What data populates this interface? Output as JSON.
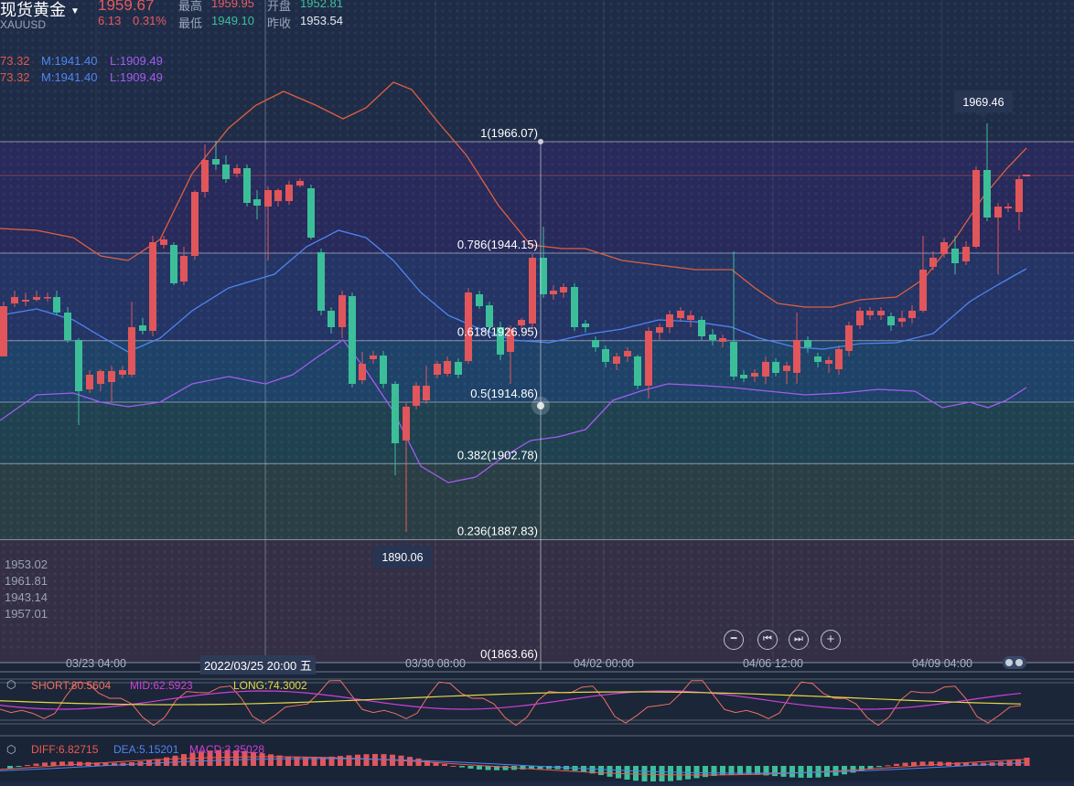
{
  "header": {
    "title": "现货黄金",
    "symbol": "XAUUSD",
    "price": "1959.67",
    "change": "6.13",
    "change_pct": "0.31%",
    "high_label": "最高",
    "high": "1959.95",
    "low_label": "最低",
    "low": "1949.10",
    "open_label": "开盘",
    "open": "1952.81",
    "prev_close_label": "昨收",
    "prev_close": "1953.54"
  },
  "boll_line_1": {
    "up": "73.32",
    "mid": "M:1941.40",
    "low": "L:1909.49"
  },
  "boll_line_2": {
    "up": "73.32",
    "mid": "M:1941.40",
    "low": "L:1909.49"
  },
  "left_values": [
    "1953.02",
    "1961.81",
    "1943.14",
    "1957.01"
  ],
  "crosshair_time": "2022/03/25 20:00 五",
  "peak_label": "1969.46",
  "trough_label": "1890.06",
  "indicator_1": {
    "short": "SHORT:80.5604",
    "mid": "MID:62.5923",
    "long": "LONG:74.3002"
  },
  "indicator_2": {
    "diff": "DIFF:6.82715",
    "dea": "DEA:5.15201",
    "macd": "MACD:3.35028"
  },
  "colors": {
    "up": "#e0565b",
    "down": "#3cbf99",
    "mid_band": "#4f86f0",
    "low_band": "#a35cf0",
    "up_band": "#e06040",
    "short": "#ee7060",
    "mid": "#d040d8",
    "long": "#e6d845"
  },
  "chart_data": {
    "type": "candlestick",
    "y_axis": {
      "min": 1863.66,
      "max": 1966.07
    },
    "x_tick_labels": [
      "03/23 04:00",
      "03/30 08:00",
      "04/02 00:00",
      "04/06 12:00",
      "04/09 04:00"
    ],
    "fibonacci_levels": [
      {
        "ratio": "1",
        "value": 1966.07,
        "label": "1(1966.07)"
      },
      {
        "ratio": "0.786",
        "value": 1944.15,
        "label": "0.786(1944.15)"
      },
      {
        "ratio": "0.618",
        "value": 1926.95,
        "label": "0.618(1926.95)"
      },
      {
        "ratio": "0.5",
        "value": 1914.86,
        "label": "0.5(1914.86)"
      },
      {
        "ratio": "0.382",
        "value": 1902.78,
        "label": "0.382(1902.78)"
      },
      {
        "ratio": "0.236",
        "value": 1887.83,
        "label": "0.236(1887.83)"
      },
      {
        "ratio": "0",
        "value": 1863.66,
        "label": "0(1863.66)"
      }
    ],
    "peak": 1969.46,
    "trough": 1890.06
  }
}
